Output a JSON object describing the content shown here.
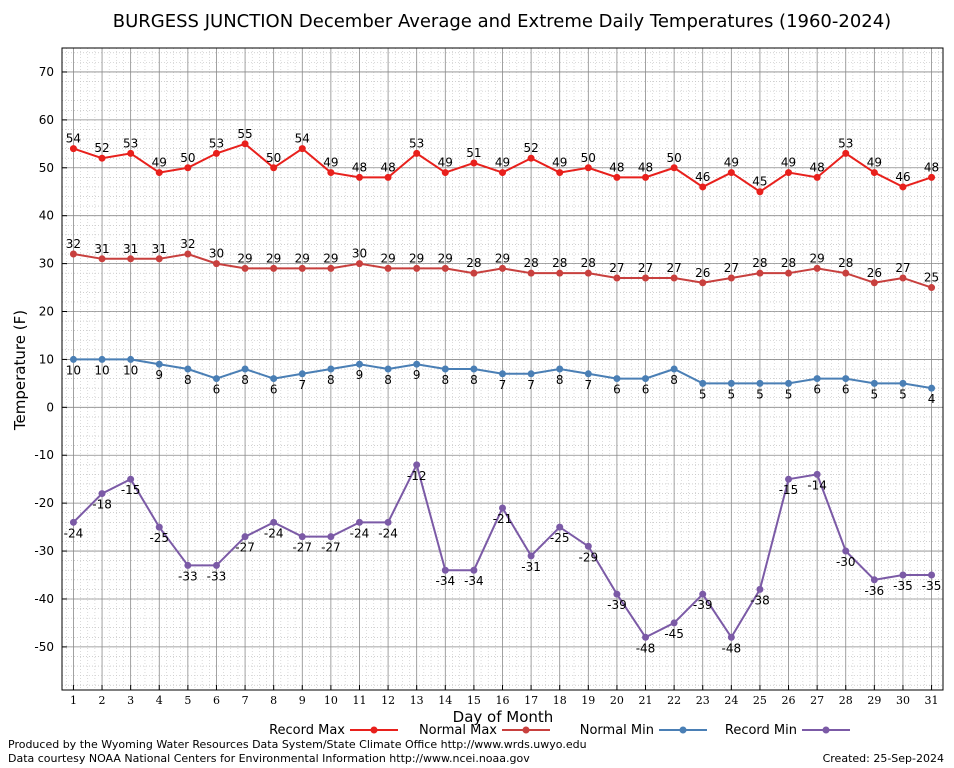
{
  "chart_data": {
    "type": "line",
    "title": "BURGESS JUNCTION December Average and Extreme Daily Temperatures (1960-2024)",
    "xlabel": "Day of Month",
    "ylabel": "Temperature (F)",
    "x": [
      1,
      2,
      3,
      4,
      5,
      6,
      7,
      8,
      9,
      10,
      11,
      12,
      13,
      14,
      15,
      16,
      17,
      18,
      19,
      20,
      21,
      22,
      23,
      24,
      25,
      26,
      27,
      28,
      29,
      30,
      31
    ],
    "xlim": [
      0.6,
      31.4
    ],
    "ylim": [
      -59,
      75
    ],
    "yticks": [
      70,
      60,
      50,
      40,
      30,
      20,
      10,
      0,
      -10,
      -20,
      -30,
      -40,
      -50
    ],
    "grid": true,
    "legend_position": "bottom",
    "series": [
      {
        "name": "Record Max",
        "color": "#e8201c",
        "values": [
          54,
          52,
          53,
          49,
          50,
          53,
          55,
          50,
          54,
          49,
          48,
          48,
          53,
          49,
          51,
          49,
          52,
          49,
          50,
          48,
          48,
          50,
          46,
          49,
          45,
          49,
          48,
          53,
          49,
          46,
          48
        ]
      },
      {
        "name": "Normal Max",
        "color": "#c8403e",
        "values": [
          32,
          31,
          31,
          31,
          32,
          30,
          29,
          29,
          29,
          29,
          30,
          29,
          29,
          29,
          28,
          29,
          28,
          28,
          28,
          27,
          27,
          27,
          26,
          27,
          28,
          28,
          29,
          28,
          26,
          27,
          25
        ]
      },
      {
        "name": "Normal Min",
        "color": "#4a7fb5",
        "values": [
          10,
          10,
          10,
          9,
          8,
          6,
          8,
          6,
          7,
          8,
          9,
          8,
          9,
          8,
          8,
          7,
          7,
          8,
          7,
          6,
          6,
          8,
          5,
          5,
          5,
          5,
          6,
          6,
          5,
          5,
          4
        ]
      },
      {
        "name": "Record Min",
        "color": "#7b5aa6",
        "values": [
          -24,
          -18,
          -15,
          -25,
          -33,
          -33,
          -27,
          -24,
          -27,
          -27,
          -24,
          -24,
          -12,
          -34,
          -34,
          -21,
          -31,
          -25,
          -29,
          -39,
          -48,
          -45,
          -39,
          -48,
          -38,
          -15,
          -14,
          -30,
          -36,
          -35,
          -35
        ]
      }
    ]
  },
  "footer": {
    "producer": "Produced by the Wyoming Water Resources Data System/State Climate Office http://www.wrds.uwyo.edu",
    "courtesy": "Data courtesy NOAA National Centers for Environmental Information http://www.ncei.noaa.gov",
    "created": "Created:  25-Sep-2024"
  }
}
